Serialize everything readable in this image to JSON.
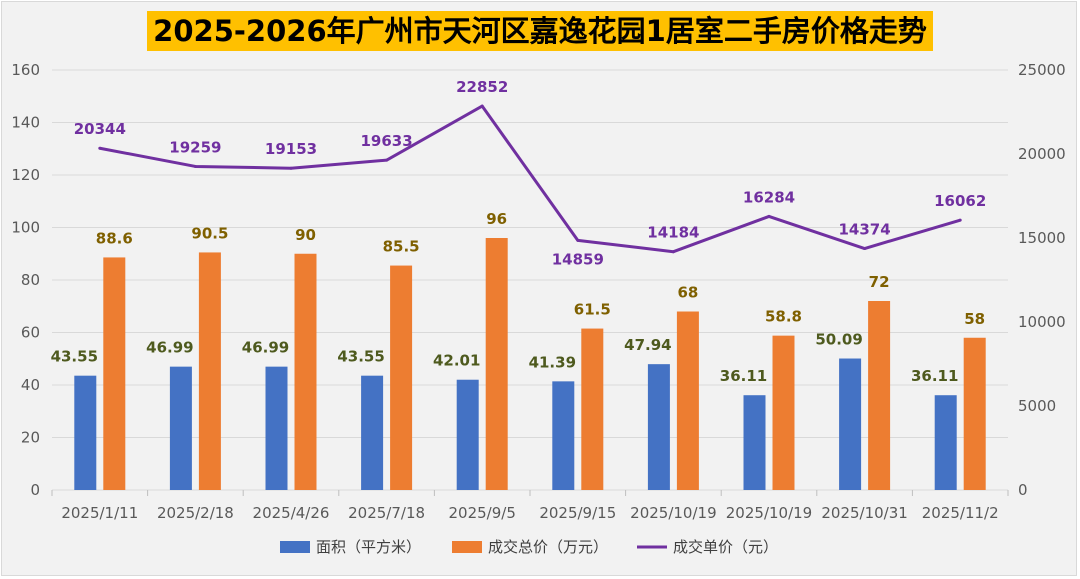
{
  "title": "2025-2026年广州市天河区嘉逸花园1居室二手房价格走势",
  "colors": {
    "area": "#4472c4",
    "total": "#ed7d31",
    "unit": "#7030a0",
    "title_bg": "#ffc000"
  },
  "chart_data": {
    "type": "bar",
    "categories": [
      "2025/1/11",
      "2025/2/18",
      "2025/4/26",
      "2025/7/18",
      "2025/9/5",
      "2025/9/15",
      "2025/10/19",
      "2025/10/19",
      "2025/10/31",
      "2025/11/2"
    ],
    "series": [
      {
        "name": "面积（平方米）",
        "type": "bar",
        "axis": "left",
        "values": [
          43.55,
          46.99,
          46.99,
          43.55,
          42.01,
          41.39,
          47.94,
          36.11,
          50.09,
          36.11
        ]
      },
      {
        "name": "成交总价（万元）",
        "type": "bar",
        "axis": "left",
        "values": [
          88.6,
          90.5,
          90,
          85.5,
          96,
          61.5,
          68,
          58.8,
          72,
          58
        ]
      },
      {
        "name": "成交单价（元）",
        "type": "line",
        "axis": "right",
        "values": [
          20344,
          19259,
          19153,
          19633,
          22852,
          14859,
          14184,
          16284,
          14374,
          16062
        ]
      }
    ],
    "y_left": {
      "min": 0,
      "max": 160,
      "ticks": [
        0,
        20,
        40,
        60,
        80,
        100,
        120,
        140,
        160
      ]
    },
    "y_right": {
      "min": 0,
      "max": 25000,
      "ticks": [
        0,
        5000,
        10000,
        15000,
        20000,
        25000
      ]
    },
    "grid": true,
    "legend_position": "bottom"
  }
}
